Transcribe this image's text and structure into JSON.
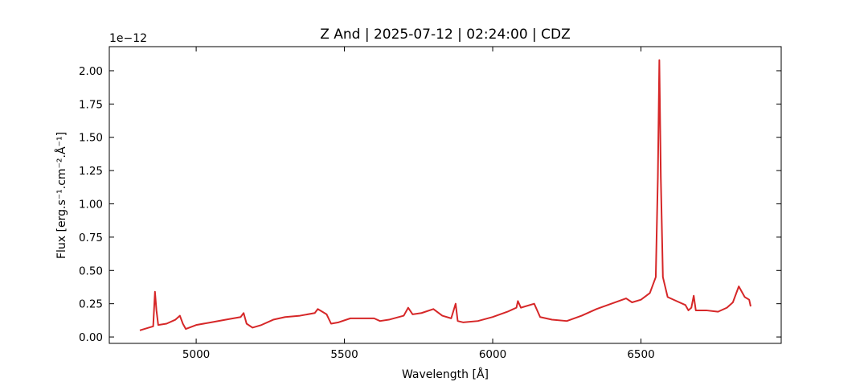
{
  "chart_data": {
    "type": "line",
    "title": "Z And | 2025-07-12 | 02:24:00 | CDZ",
    "x_label": "Wavelength [Å]",
    "y_label": "Flux [erg.s⁻¹.cm⁻².Å⁻¹]",
    "y_offset_label": "1e−12",
    "xlim": [
      4707,
      6973
    ],
    "ylim": [
      -0.048,
      2.181
    ],
    "xticks": [
      5000,
      5500,
      6000,
      6500
    ],
    "yticks": [
      {
        "value": 0,
        "label": "0.00"
      },
      {
        "value": 0.25,
        "label": "0.25"
      },
      {
        "value": 0.5,
        "label": "0.50"
      },
      {
        "value": 0.75,
        "label": "0.75"
      },
      {
        "value": 1,
        "label": "1.00"
      },
      {
        "value": 1.25,
        "label": "1.25"
      },
      {
        "value": 1.5,
        "label": "1.50"
      },
      {
        "value": 1.75,
        "label": "1.75"
      },
      {
        "value": 2,
        "label": "2.00"
      }
    ],
    "ticks_direction": "in",
    "series": [
      {
        "color": "#d62728",
        "x": [
          4810,
          4840,
          4855,
          4861,
          4866,
          4872,
          4900,
          4930,
          4945,
          4955,
          4965,
          5000,
          5050,
          5100,
          5150,
          5160,
          5170,
          5190,
          5220,
          5260,
          5300,
          5350,
          5400,
          5410,
          5440,
          5455,
          5480,
          5520,
          5560,
          5600,
          5620,
          5650,
          5700,
          5715,
          5730,
          5760,
          5800,
          5830,
          5860,
          5875,
          5882,
          5900,
          5950,
          6000,
          6050,
          6080,
          6085,
          6095,
          6140,
          6160,
          6200,
          6250,
          6300,
          6350,
          6400,
          6450,
          6470,
          6500,
          6530,
          6550,
          6557,
          6562,
          6567,
          6574,
          6590,
          6620,
          6650,
          6660,
          6670,
          6678,
          6685,
          6720,
          6760,
          6790,
          6810,
          6830,
          6850,
          6865,
          6870
        ],
        "values": [
          0.05,
          0.07,
          0.08,
          0.34,
          0.2,
          0.09,
          0.1,
          0.13,
          0.16,
          0.1,
          0.06,
          0.09,
          0.11,
          0.13,
          0.15,
          0.18,
          0.1,
          0.07,
          0.09,
          0.13,
          0.15,
          0.16,
          0.18,
          0.21,
          0.17,
          0.1,
          0.11,
          0.14,
          0.14,
          0.14,
          0.12,
          0.13,
          0.16,
          0.22,
          0.17,
          0.18,
          0.21,
          0.16,
          0.14,
          0.25,
          0.12,
          0.11,
          0.12,
          0.15,
          0.19,
          0.22,
          0.27,
          0.22,
          0.25,
          0.15,
          0.13,
          0.12,
          0.16,
          0.21,
          0.25,
          0.29,
          0.26,
          0.28,
          0.33,
          0.45,
          1.2,
          2.08,
          1.2,
          0.45,
          0.3,
          0.27,
          0.24,
          0.2,
          0.22,
          0.31,
          0.2,
          0.2,
          0.19,
          0.22,
          0.26,
          0.38,
          0.3,
          0.28,
          0.23
        ]
      }
    ]
  }
}
